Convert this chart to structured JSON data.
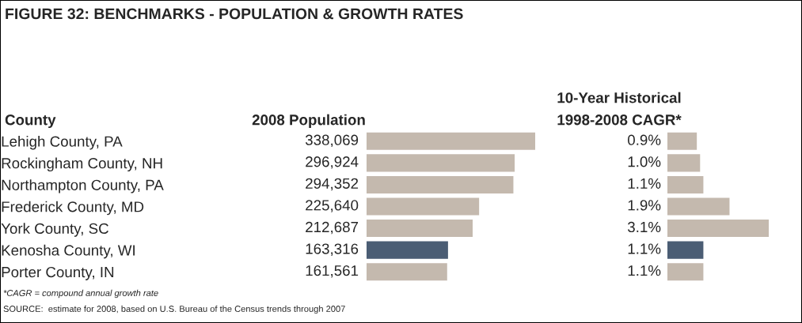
{
  "chart_data": [
    {
      "type": "bar",
      "orientation": "horizontal",
      "title": "FIGURE 32: BENCHMARKS - POPULATION & GROWTH RATES",
      "ylabel": "County",
      "xlabel": "2008 Population",
      "categories": [
        "Lehigh County, PA",
        "Rockingham County, NH",
        "Northampton County, PA",
        "Frederick County, MD",
        "York County, SC",
        "Kenosha County, WI",
        "Porter County, IN"
      ],
      "values": [
        338069,
        296924,
        294352,
        225640,
        212687,
        163316,
        161561
      ],
      "colors": [
        "#c4b9ae",
        "#c4b9ae",
        "#c4b9ae",
        "#c4b9ae",
        "#c4b9ae",
        "#4b5d74",
        "#c4b9ae"
      ],
      "value_labels": [
        "338,069",
        "296,924",
        "294,352",
        "225,640",
        "212,687",
        "163,316",
        "161,561"
      ],
      "grid": false,
      "annotations": [
        "*CAGR = compound annual growth rate",
        "SOURCE:  estimate for 2008, based on U.S. Bureau of the Census trends through 2007"
      ]
    },
    {
      "type": "bar",
      "orientation": "horizontal",
      "title": "10-Year Historical",
      "xlabel": "1998-2008 CAGR*",
      "categories": [
        null,
        null,
        null,
        null,
        null,
        null,
        null
      ],
      "values": [
        0.9,
        1.0,
        1.1,
        1.9,
        3.1,
        1.1,
        1.1
      ],
      "colors": [
        "#c4b9ae",
        "#c4b9ae",
        "#c4b9ae",
        "#c4b9ae",
        "#c4b9ae",
        "#4b5d74",
        "#c4b9ae"
      ],
      "value_labels": [
        "0.9%",
        "1.0%",
        "1.1%",
        "1.9%",
        "3.1%",
        "1.1%",
        "1.1%"
      ],
      "grid": false
    }
  ]
}
